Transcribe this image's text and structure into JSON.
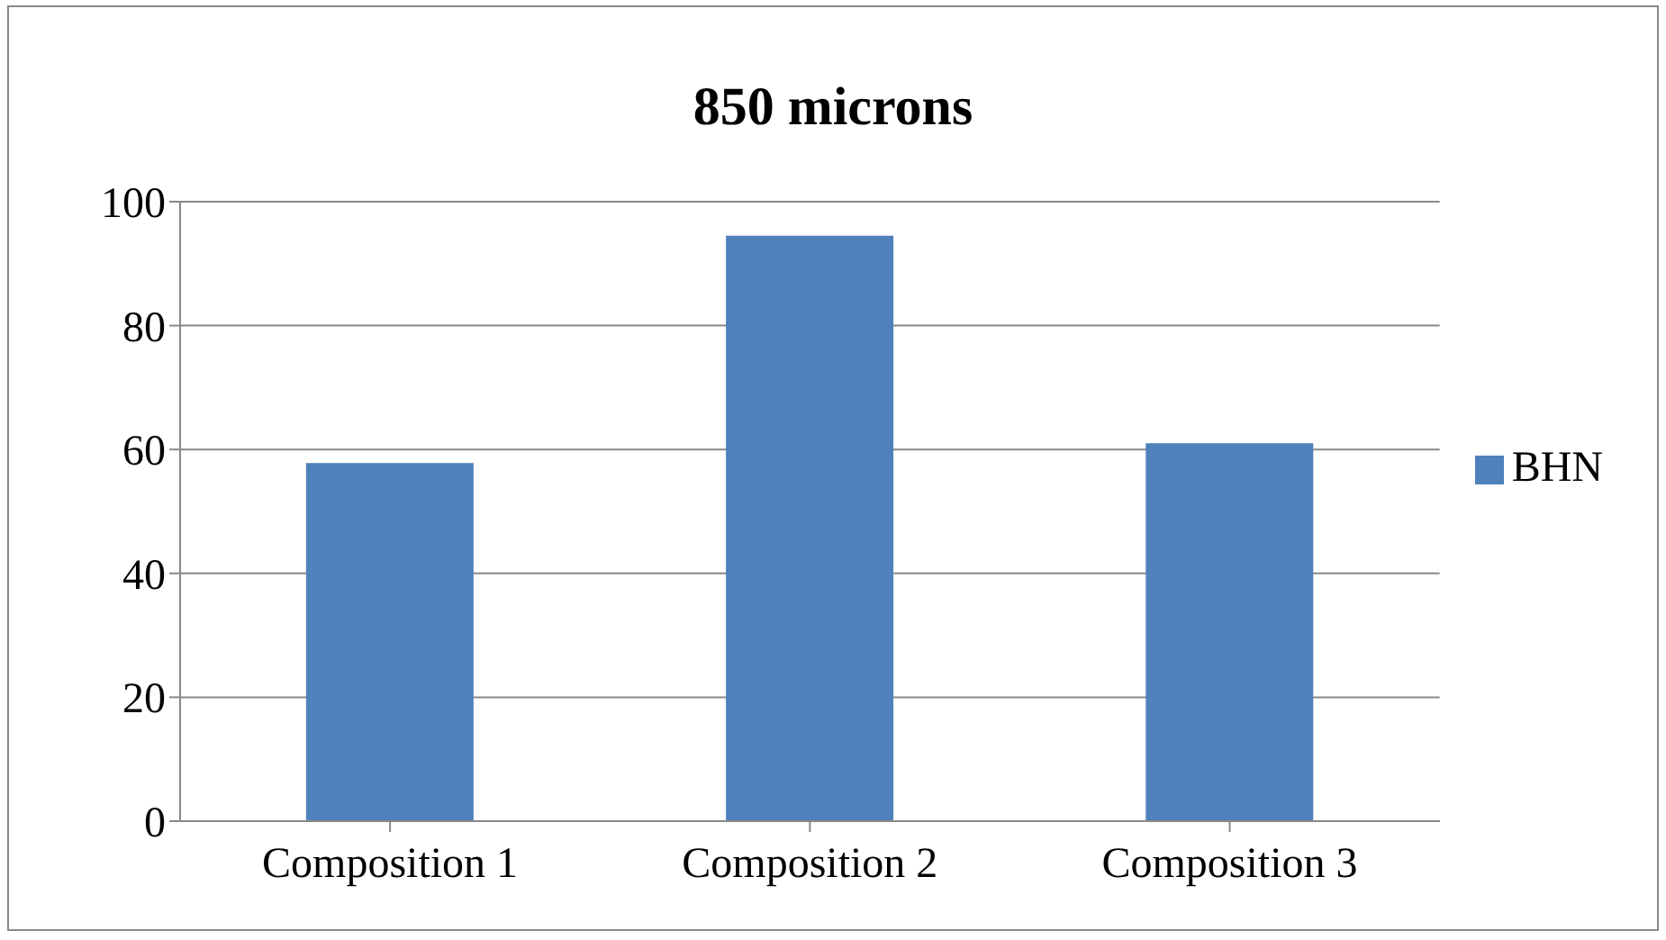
{
  "chart_data": {
    "type": "bar",
    "title": "850 microns",
    "categories": [
      "Composition 1",
      "Composition 2",
      "Composition 3"
    ],
    "series": [
      {
        "name": "BHN",
        "color": "#4f81bd",
        "values": [
          57.8,
          94.5,
          61
        ]
      }
    ],
    "ylim": [
      0,
      100
    ],
    "yticks": [
      0,
      20,
      40,
      60,
      80,
      100
    ],
    "grid": "y",
    "legend": "right"
  }
}
